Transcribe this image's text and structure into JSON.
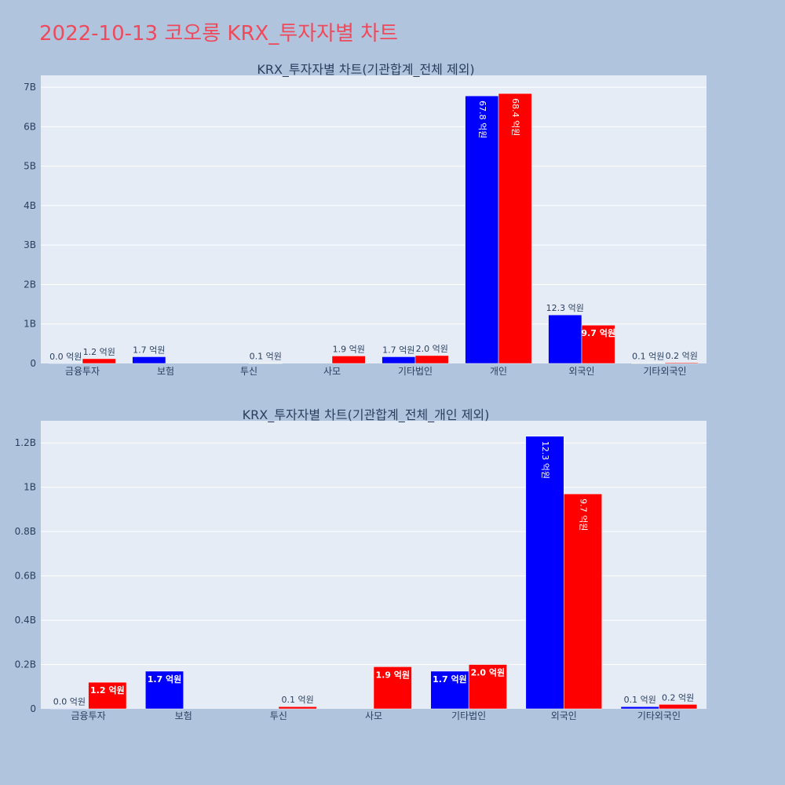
{
  "page_title": "2022-10-13 코오롱 KRX_투자자별 차트",
  "colors": {
    "buy": "#0000ff",
    "sell": "#ff0000",
    "plot_bg": "#e5ecf6",
    "page_bg": "#b0c4de",
    "title": "#ef4a5c"
  },
  "chart_data": [
    {
      "type": "bar",
      "title": "KRX_투자자별 차트(기관합계_전체 제외)",
      "categories": [
        "금융투자",
        "보험",
        "투신",
        "사모",
        "기타법인",
        "개인",
        "외국인",
        "기타외국인"
      ],
      "series": [
        {
          "color": "#0000ff",
          "values": [
            2000000,
            170000000,
            0,
            0,
            170000000,
            6780000000,
            1230000000,
            10000000
          ],
          "labels": [
            "0.0 억원",
            "1.7 억원",
            "",
            "",
            "1.7 억원",
            "67.8 억원",
            "12.3 억원",
            "0.1 억원"
          ]
        },
        {
          "color": "#ff0000",
          "values": [
            120000000,
            0,
            10000000,
            190000000,
            200000000,
            6840000000,
            970000000,
            20000000
          ],
          "labels": [
            "1.2 억원",
            "",
            "0.1 억원",
            "1.9 억원",
            "2.0 억원",
            "68.4 억원",
            "9.7 억원",
            "0.2 억원"
          ]
        }
      ],
      "ylim": [
        0,
        7300000000
      ],
      "yticks": [
        0,
        1000000000,
        2000000000,
        3000000000,
        4000000000,
        5000000000,
        6000000000,
        7000000000
      ],
      "ytick_labels": [
        "0",
        "1B",
        "2B",
        "3B",
        "4B",
        "5B",
        "6B",
        "7B"
      ],
      "grid": true
    },
    {
      "type": "bar",
      "title": "KRX_투자자별 차트(기관합계_전체_개인 제외)",
      "categories": [
        "금융투자",
        "보험",
        "투신",
        "사모",
        "기타법인",
        "외국인",
        "기타외국인"
      ],
      "series": [
        {
          "color": "#0000ff",
          "values": [
            2000000,
            170000000,
            0,
            0,
            170000000,
            1230000000,
            10000000
          ],
          "labels": [
            "0.0 억원",
            "1.7 억원",
            "",
            "",
            "1.7 억원",
            "12.3 억원",
            "0.1 억원"
          ]
        },
        {
          "color": "#ff0000",
          "values": [
            120000000,
            0,
            10000000,
            190000000,
            200000000,
            970000000,
            20000000
          ],
          "labels": [
            "1.2 억원",
            "",
            "0.1 억원",
            "1.9 억원",
            "2.0 억원",
            "9.7 억원",
            "0.2 억원"
          ]
        }
      ],
      "ylim": [
        0,
        1300000000
      ],
      "yticks": [
        0,
        200000000,
        400000000,
        600000000,
        800000000,
        1000000000,
        1200000000
      ],
      "ytick_labels": [
        "0",
        "0.2B",
        "0.4B",
        "0.6B",
        "0.8B",
        "1B",
        "1.2B"
      ],
      "grid": true
    }
  ]
}
